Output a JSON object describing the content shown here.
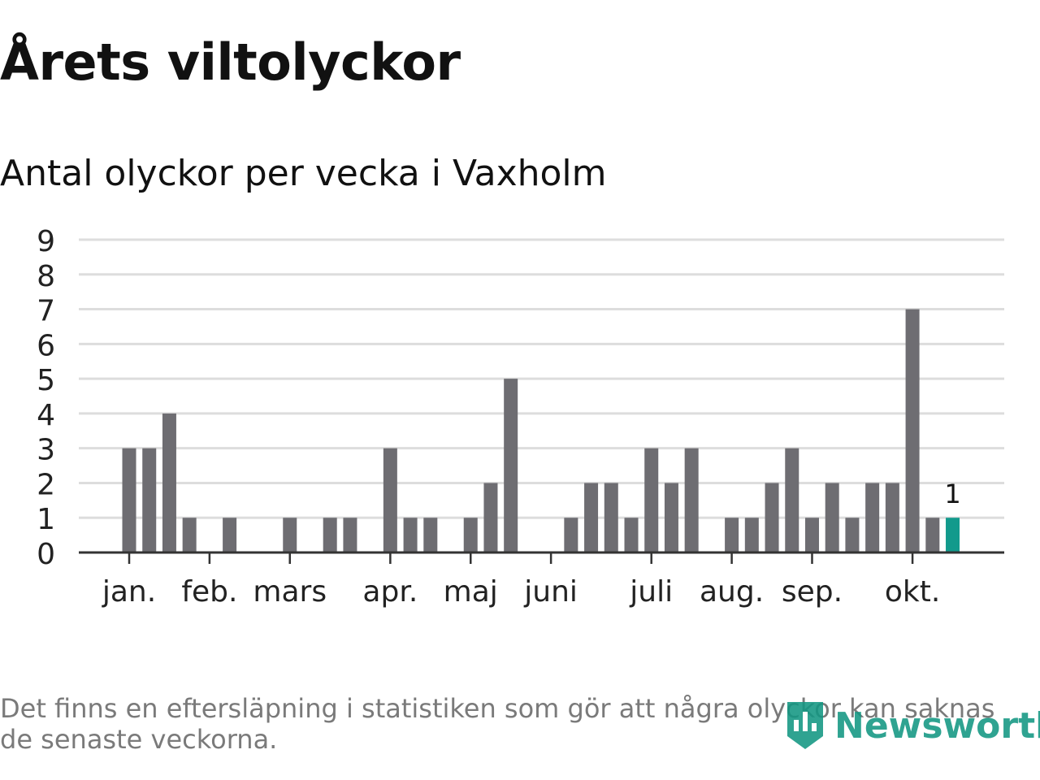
{
  "header": {
    "title": "Årets viltolyckor",
    "subtitle": "Antal olyckor per vecka i Vaxholm"
  },
  "chart_data": {
    "type": "bar",
    "ylim": [
      0,
      9
    ],
    "yticks": [
      0,
      1,
      2,
      3,
      4,
      5,
      6,
      7,
      8,
      9
    ],
    "grid": true,
    "x": [
      1,
      2,
      3,
      4,
      5,
      6,
      7,
      8,
      9,
      10,
      11,
      12,
      13,
      14,
      15,
      16,
      17,
      18,
      19,
      20,
      21,
      22,
      23,
      24,
      25,
      26,
      27,
      28,
      29,
      30,
      31,
      32,
      33,
      34,
      35,
      36,
      37,
      38,
      39,
      40,
      41,
      42,
      43
    ],
    "values": [
      3,
      3,
      4,
      1,
      0,
      1,
      0,
      0,
      1,
      0,
      1,
      1,
      0,
      3,
      1,
      1,
      0,
      1,
      2,
      5,
      0,
      0,
      1,
      2,
      2,
      1,
      3,
      2,
      3,
      0,
      1,
      1,
      2,
      3,
      1,
      2,
      1,
      2,
      2,
      7,
      1,
      1,
      0
    ],
    "month_labels": [
      {
        "label": "jan.",
        "week": 1
      },
      {
        "label": "feb.",
        "week": 5
      },
      {
        "label": "mars",
        "week": 9
      },
      {
        "label": "apr.",
        "week": 14
      },
      {
        "label": "maj",
        "week": 18
      },
      {
        "label": "juni",
        "week": 22
      },
      {
        "label": "juli",
        "week": 27
      },
      {
        "label": "aug.",
        "week": 31
      },
      {
        "label": "sep.",
        "week": 35
      },
      {
        "label": "okt.",
        "week": 40
      }
    ],
    "highlight_week": 42,
    "highlight_label": "1",
    "colors": {
      "bar": "#6e6d72",
      "highlight": "#129a8c",
      "grid": "#dddddd",
      "axis": "#333333"
    }
  },
  "footer": {
    "note": "Det finns en eftersläpning i statistiken som gör att några olyckor kan saknas de senaste veckorna.",
    "brand": "Newsworthy",
    "brand_icon": "newsworthy-logo-icon"
  }
}
